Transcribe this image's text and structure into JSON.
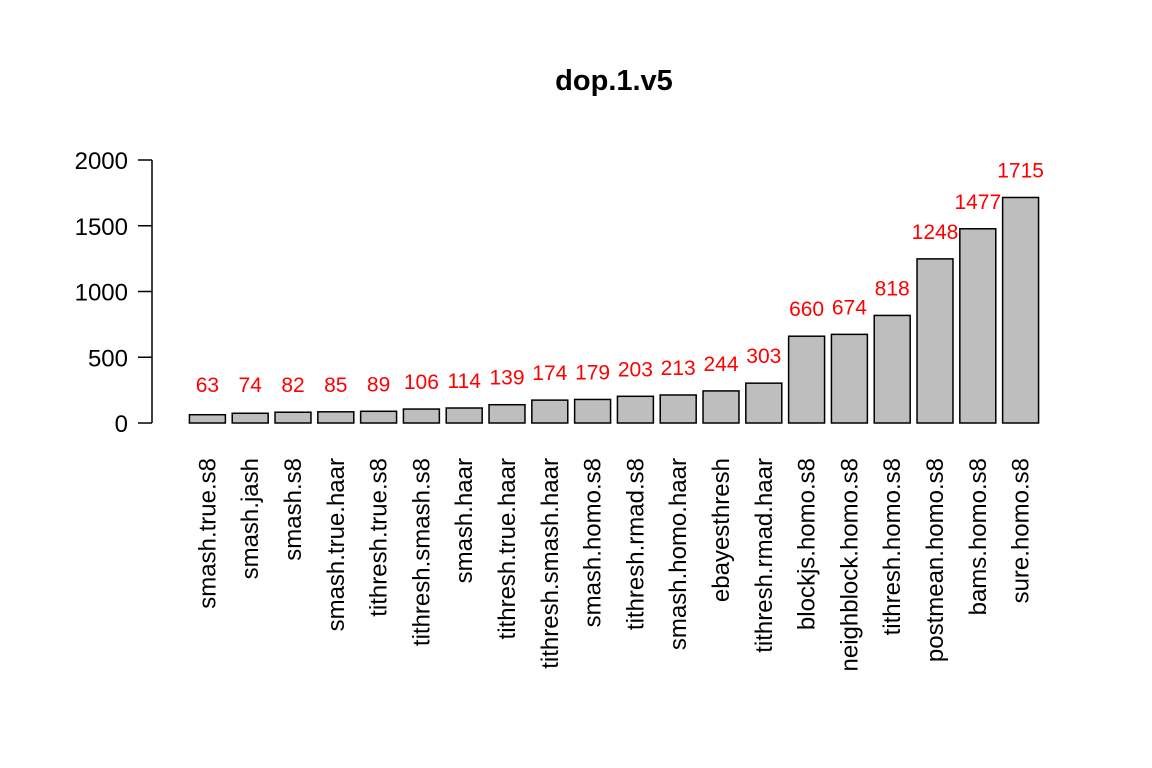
{
  "chart_data": {
    "type": "bar",
    "title": "dop.1.v5",
    "xlabel": "",
    "ylabel": "",
    "ylim": [
      0,
      2000
    ],
    "yticks": [
      0,
      500,
      1000,
      1500,
      2000
    ],
    "categories": [
      "smash.true.s8",
      "smash.jash",
      "smash.s8",
      "smash.true.haar",
      "tithresh.true.s8",
      "tithresh.smash.s8",
      "smash.haar",
      "tithresh.true.haar",
      "tithresh.smash.haar",
      "smash.homo.s8",
      "tithresh.rmad.s8",
      "smash.homo.haar",
      "ebayesthresh",
      "tithresh.rmad.haar",
      "blockjs.homo.s8",
      "neighblock.homo.s8",
      "tithresh.homo.s8",
      "postmean.homo.s8",
      "bams.homo.s8",
      "sure.homo.s8"
    ],
    "values": [
      63,
      74,
      82,
      85,
      89,
      106,
      114,
      139,
      174,
      179,
      203,
      213,
      244,
      303,
      660,
      674,
      818,
      1248,
      1477,
      1715
    ],
    "bar_color": "#bebebe",
    "label_color": "#ff0000",
    "grid": false,
    "legend": "none"
  }
}
